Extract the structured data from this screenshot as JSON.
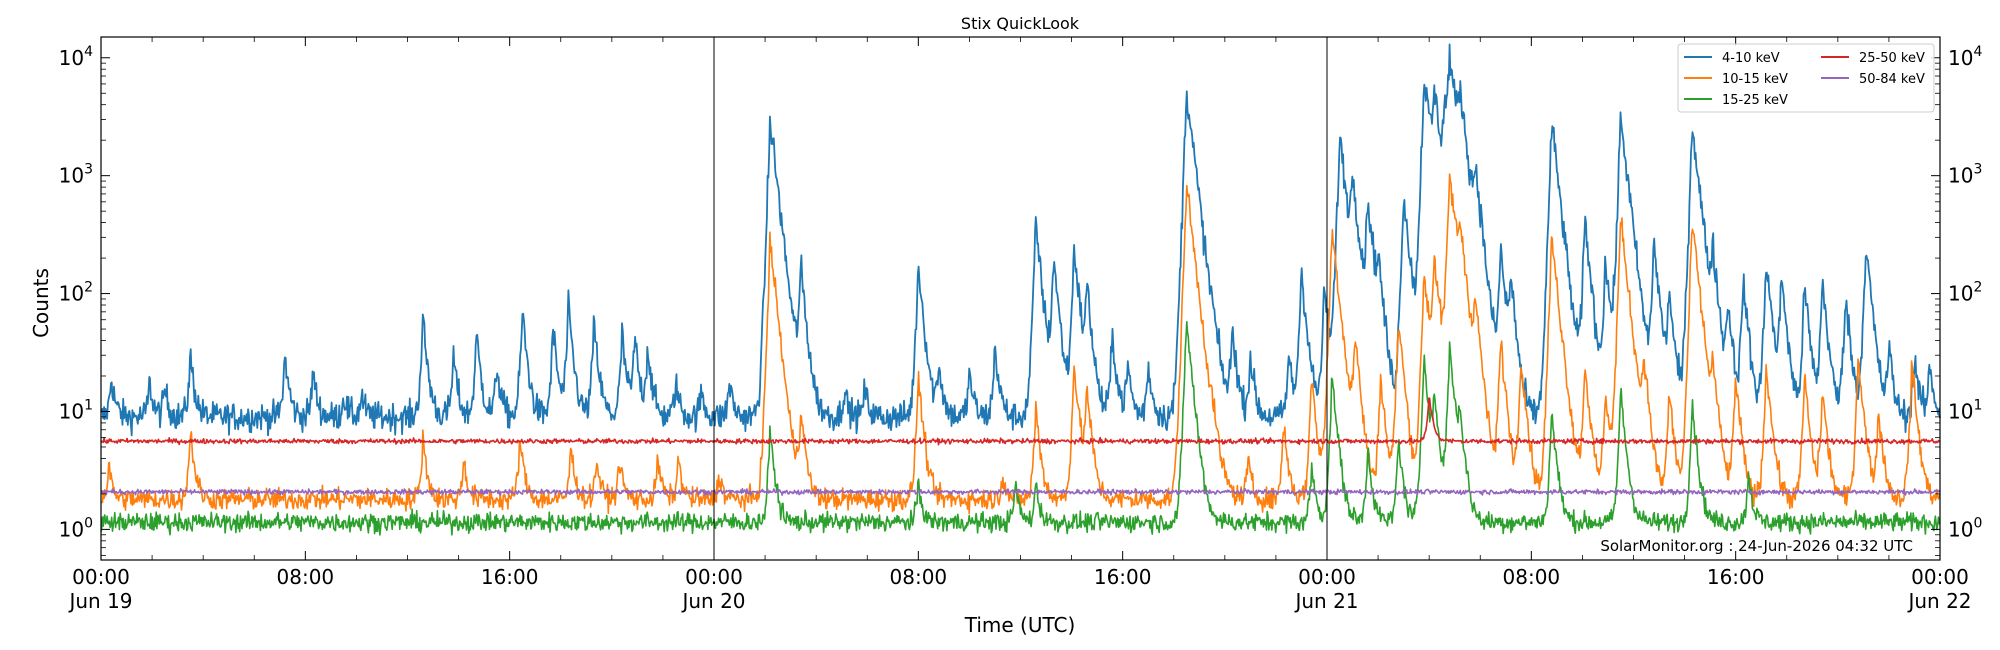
{
  "chart_data": {
    "type": "line",
    "title": "Stix QuickLook",
    "xlabel": "Time (UTC)",
    "ylabel": "Counts",
    "yscale": "log",
    "ylim": [
      0.55,
      15000
    ],
    "x_range_hours": [
      0,
      72
    ],
    "grid": false,
    "legend": "top-right",
    "day_separators_hours": [
      24,
      48
    ],
    "x_ticks": [
      {
        "hour": 0,
        "time": "00:00",
        "day": "Jun 19"
      },
      {
        "hour": 8,
        "time": "08:00",
        "day": ""
      },
      {
        "hour": 16,
        "time": "16:00",
        "day": ""
      },
      {
        "hour": 24,
        "time": "00:00",
        "day": "Jun 20"
      },
      {
        "hour": 32,
        "time": "08:00",
        "day": ""
      },
      {
        "hour": 40,
        "time": "16:00",
        "day": ""
      },
      {
        "hour": 48,
        "time": "00:00",
        "day": "Jun 21"
      },
      {
        "hour": 56,
        "time": "08:00",
        "day": ""
      },
      {
        "hour": 64,
        "time": "16:00",
        "day": ""
      },
      {
        "hour": 72,
        "time": "00:00",
        "day": "Jun 22"
      }
    ],
    "y_ticks": [
      {
        "value": 1,
        "exp": "0"
      },
      {
        "value": 10,
        "exp": "1"
      },
      {
        "value": 100,
        "exp": "2"
      },
      {
        "value": 1000,
        "exp": "3"
      },
      {
        "value": 10000,
        "exp": "4"
      }
    ],
    "annotation": "SolarMonitor.org : 24-Jun-2026 04:32 UTC",
    "series": [
      {
        "name": "4-10 keV",
        "color": "#1f77b4",
        "baseline": 9,
        "noise": 0.12,
        "peaks": [
          [
            0.4,
            20
          ],
          [
            1.9,
            18
          ],
          [
            2.5,
            16
          ],
          [
            3.5,
            30
          ],
          [
            7.2,
            30
          ],
          [
            8.3,
            22
          ],
          [
            9.5,
            14
          ],
          [
            10.2,
            14
          ],
          [
            12.6,
            60
          ],
          [
            13.8,
            30
          ],
          [
            14.7,
            45
          ],
          [
            15.5,
            25
          ],
          [
            16.5,
            70
          ],
          [
            17.7,
            50
          ],
          [
            18.3,
            75
          ],
          [
            19.3,
            55
          ],
          [
            20.4,
            45
          ],
          [
            20.9,
            42
          ],
          [
            21.4,
            35
          ],
          [
            22.5,
            18
          ],
          [
            23.5,
            15
          ],
          [
            24.6,
            18
          ],
          [
            26.2,
            3000
          ],
          [
            27.4,
            160
          ],
          [
            29.1,
            16
          ],
          [
            29.9,
            16
          ],
          [
            32.0,
            180
          ],
          [
            32.8,
            25
          ],
          [
            34.0,
            22
          ],
          [
            35.0,
            35
          ],
          [
            36.6,
            400
          ],
          [
            37.3,
            200
          ],
          [
            38.1,
            250
          ],
          [
            38.6,
            110
          ],
          [
            39.6,
            45
          ],
          [
            40.2,
            25
          ],
          [
            41.0,
            25
          ],
          [
            42.5,
            5400
          ],
          [
            43.5,
            25
          ],
          [
            44.3,
            50
          ],
          [
            45.0,
            30
          ],
          [
            46.5,
            30
          ],
          [
            47.0,
            160
          ],
          [
            47.9,
            110
          ],
          [
            48.5,
            2200
          ],
          [
            49.0,
            900
          ],
          [
            49.6,
            600
          ],
          [
            50.0,
            150
          ],
          [
            51.0,
            700
          ],
          [
            51.8,
            6800
          ],
          [
            52.2,
            4300
          ],
          [
            52.6,
            3000
          ],
          [
            52.8,
            9000
          ],
          [
            53.2,
            3900
          ],
          [
            53.8,
            900
          ],
          [
            54.8,
            230
          ],
          [
            55.2,
            120
          ],
          [
            56.8,
            2800
          ],
          [
            58.1,
            420
          ],
          [
            58.9,
            190
          ],
          [
            59.5,
            3200
          ],
          [
            60.8,
            270
          ],
          [
            61.4,
            100
          ],
          [
            62.3,
            2800
          ],
          [
            63.1,
            200
          ],
          [
            63.7,
            80
          ],
          [
            64.3,
            130
          ],
          [
            65.2,
            200
          ],
          [
            65.8,
            140
          ],
          [
            66.7,
            120
          ],
          [
            67.4,
            130
          ],
          [
            68.3,
            100
          ],
          [
            69.1,
            270
          ],
          [
            70.0,
            35
          ],
          [
            71.0,
            30
          ],
          [
            71.6,
            25
          ]
        ]
      },
      {
        "name": "10-15 keV",
        "color": "#ff7f0e",
        "baseline": 1.8,
        "noise": 0.09,
        "peaks": [
          [
            0.3,
            3.5
          ],
          [
            3.5,
            7
          ],
          [
            12.6,
            6
          ],
          [
            14.2,
            4
          ],
          [
            16.4,
            6
          ],
          [
            18.4,
            5
          ],
          [
            19.4,
            4
          ],
          [
            20.3,
            4
          ],
          [
            21.8,
            4
          ],
          [
            22.6,
            4
          ],
          [
            24.2,
            3
          ],
          [
            26.2,
            280
          ],
          [
            27.4,
            10
          ],
          [
            32.0,
            20
          ],
          [
            35.3,
            3
          ],
          [
            36.6,
            11
          ],
          [
            38.1,
            25
          ],
          [
            38.6,
            15
          ],
          [
            42.5,
            850
          ],
          [
            43.5,
            4
          ],
          [
            44.9,
            4
          ],
          [
            46.3,
            8
          ],
          [
            47.4,
            20
          ],
          [
            48.2,
            350
          ],
          [
            49.1,
            40
          ],
          [
            50.1,
            20
          ],
          [
            50.8,
            60
          ],
          [
            51.8,
            150
          ],
          [
            52.2,
            190
          ],
          [
            52.8,
            1000
          ],
          [
            53.2,
            260
          ],
          [
            53.8,
            70
          ],
          [
            54.8,
            40
          ],
          [
            55.6,
            30
          ],
          [
            56.8,
            300
          ],
          [
            58.1,
            25
          ],
          [
            58.9,
            15
          ],
          [
            59.5,
            430
          ],
          [
            60.4,
            25
          ],
          [
            61.4,
            15
          ],
          [
            62.3,
            400
          ],
          [
            63.1,
            20
          ],
          [
            64.0,
            20
          ],
          [
            65.2,
            25
          ],
          [
            66.7,
            20
          ],
          [
            67.4,
            15
          ],
          [
            68.8,
            30
          ],
          [
            69.6,
            10
          ],
          [
            70.9,
            25
          ]
        ]
      },
      {
        "name": "15-25 keV",
        "color": "#2ca02c",
        "baseline": 1.15,
        "noise": 0.08,
        "peaks": [
          [
            26.2,
            7
          ],
          [
            32.0,
            2.5
          ],
          [
            35.8,
            2.5
          ],
          [
            36.6,
            2.5
          ],
          [
            42.5,
            60
          ],
          [
            47.4,
            3.5
          ],
          [
            48.2,
            20
          ],
          [
            49.6,
            5
          ],
          [
            50.8,
            6
          ],
          [
            51.8,
            30
          ],
          [
            52.2,
            12
          ],
          [
            52.8,
            35
          ],
          [
            53.2,
            8
          ],
          [
            56.8,
            10
          ],
          [
            59.5,
            15
          ],
          [
            62.3,
            12
          ],
          [
            64.5,
            3
          ]
        ]
      },
      {
        "name": "25-50 keV",
        "color": "#d62728",
        "baseline": 5.6,
        "noise": 0.02,
        "peaks": [
          [
            52.0,
            14
          ]
        ]
      },
      {
        "name": "50-84 keV",
        "color": "#9467bd",
        "baseline": 2.08,
        "noise": 0.02,
        "peaks": []
      }
    ]
  }
}
